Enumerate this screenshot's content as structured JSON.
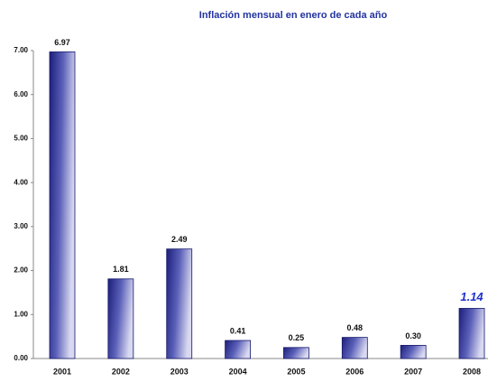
{
  "chart_data": {
    "type": "bar",
    "title": "Inflación mensual en enero de cada año",
    "categories": [
      "2001",
      "2002",
      "2003",
      "2004",
      "2005",
      "2006",
      "2007",
      "2008"
    ],
    "values": [
      6.97,
      1.81,
      2.49,
      0.41,
      0.25,
      0.48,
      0.3,
      1.14
    ],
    "value_labels": [
      "6.97",
      "1.81",
      "2.49",
      "0.41",
      "0.25",
      "0.48",
      "0.30",
      "1.14"
    ],
    "ylim": [
      0,
      7
    ],
    "yticks": [
      {
        "value": 0,
        "label": "0.00"
      },
      {
        "value": 1,
        "label": "1.00"
      },
      {
        "value": 2,
        "label": "2.00"
      },
      {
        "value": 3,
        "label": "3.00"
      },
      {
        "value": 4,
        "label": "4.00"
      },
      {
        "value": 5,
        "label": "5.00"
      },
      {
        "value": 6,
        "label": "6.00"
      },
      {
        "value": 7,
        "label": "7.00"
      }
    ],
    "grid": false
  }
}
